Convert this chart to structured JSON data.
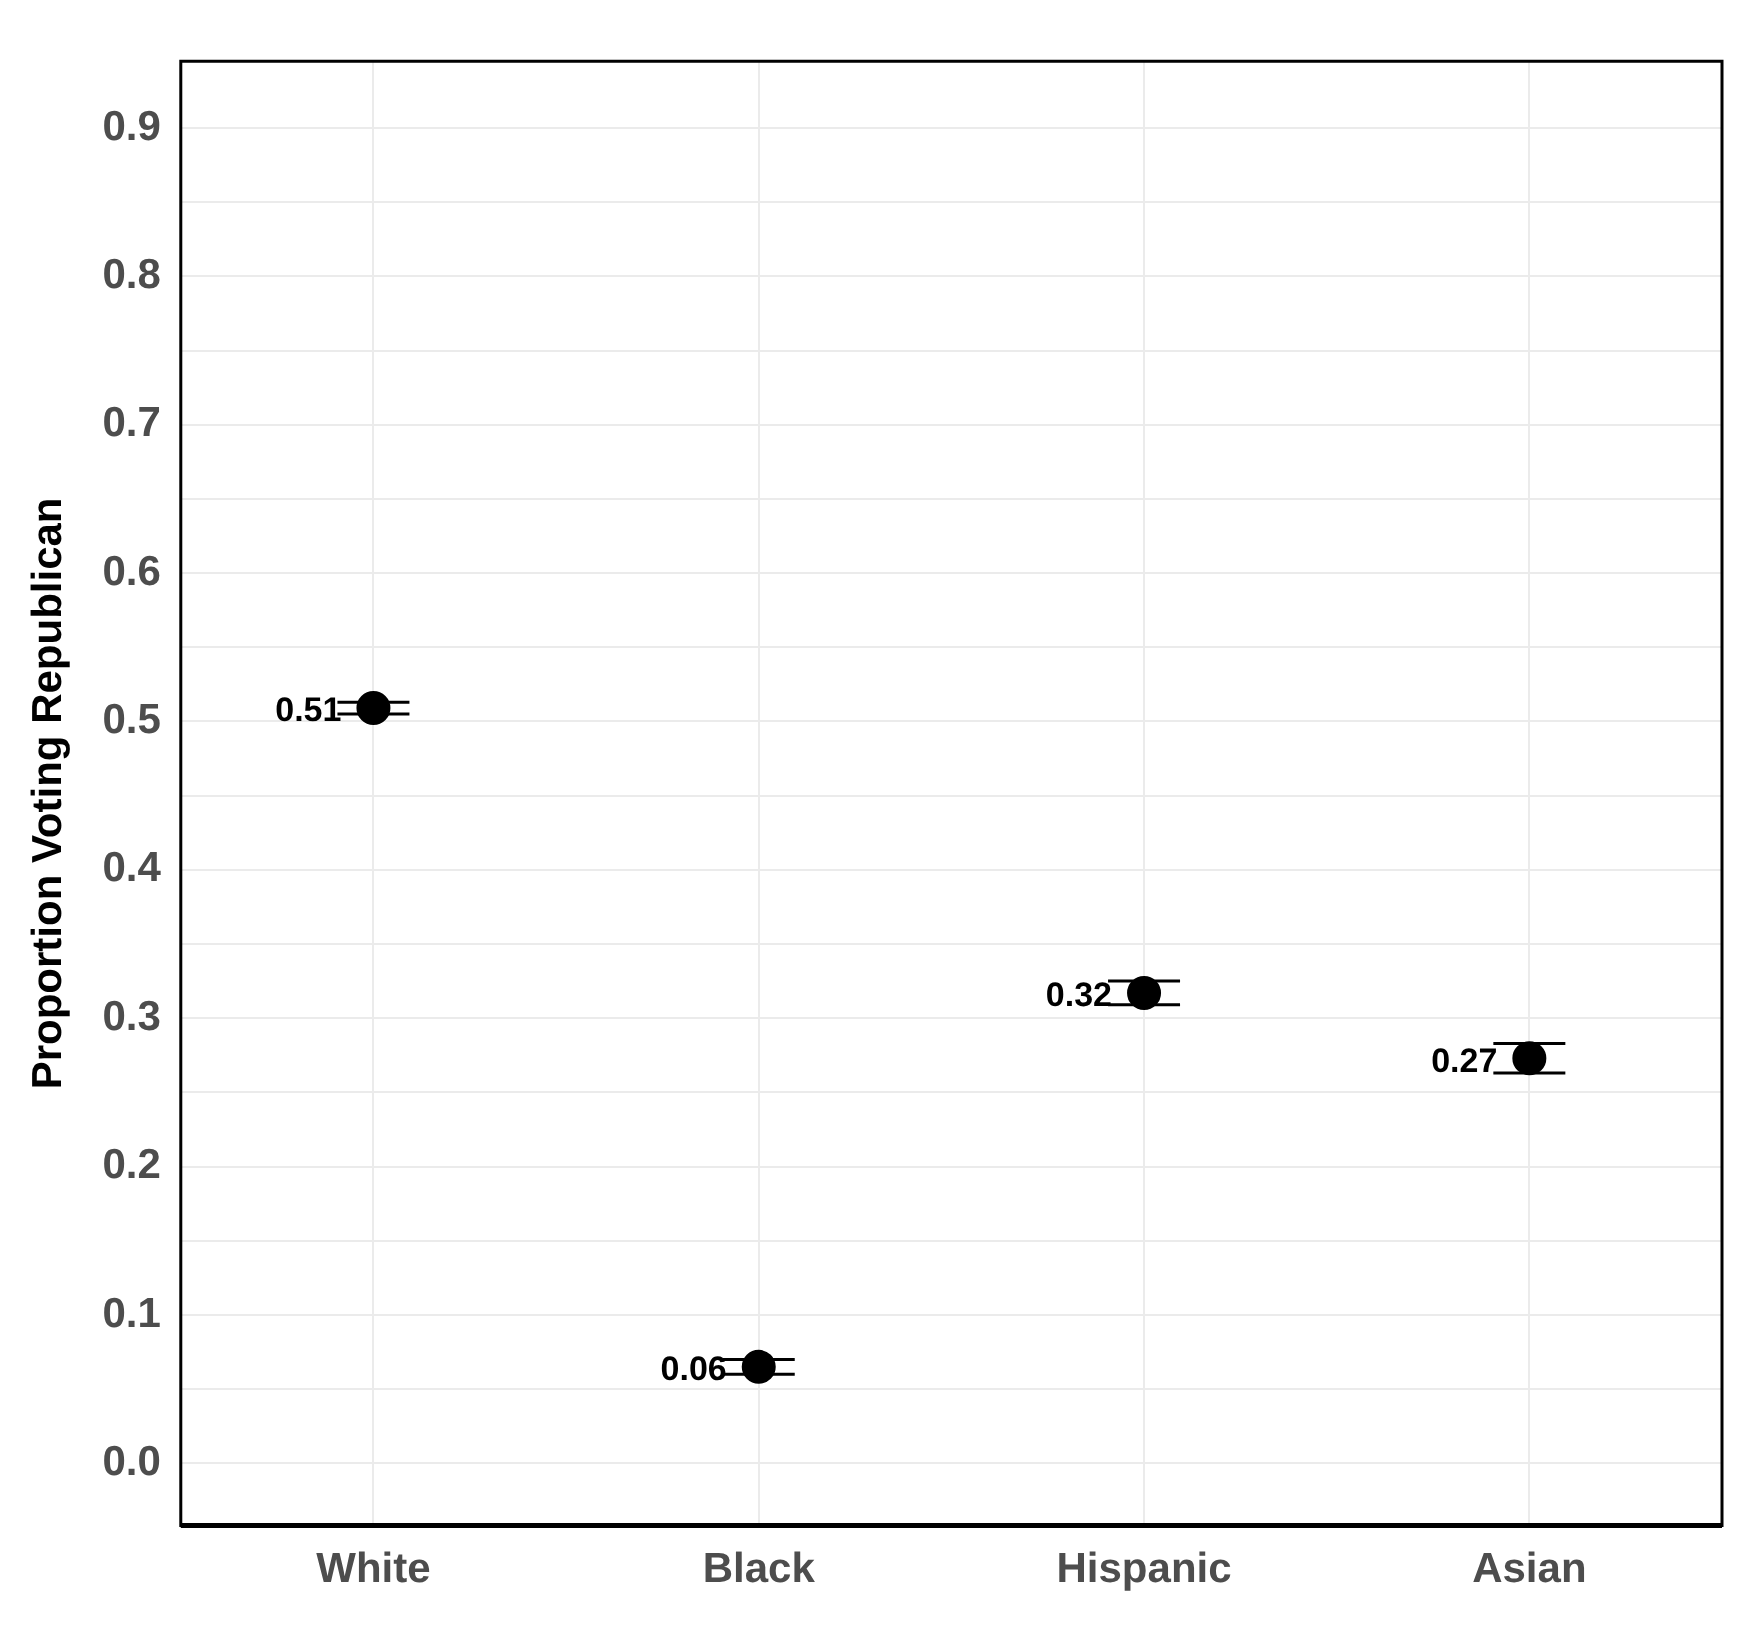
{
  "chart_data": {
    "type": "scatter",
    "ylabel": "Proportion Voting Republican",
    "categories": [
      "White",
      "Black",
      "Hispanic",
      "Asian"
    ],
    "values": [
      0.509,
      0.065,
      0.317,
      0.273
    ],
    "errors": [
      0.004,
      0.005,
      0.008,
      0.01
    ],
    "value_labels": [
      "0.51",
      "0.06",
      "0.32",
      "0.27"
    ],
    "color": "#000000",
    "marker": "circle",
    "ylim": [
      -0.042,
      0.945
    ],
    "yticks": [
      {
        "value": 0,
        "label": "0.0"
      },
      {
        "value": 0.05,
        "label": null
      },
      {
        "value": 0.1,
        "label": "0.1"
      },
      {
        "value": 0.15,
        "label": null
      },
      {
        "value": 0.2,
        "label": "0.2"
      },
      {
        "value": 0.25,
        "label": null
      },
      {
        "value": 0.3,
        "label": "0.3"
      },
      {
        "value": 0.35,
        "label": null
      },
      {
        "value": 0.4,
        "label": "0.4"
      },
      {
        "value": 0.45,
        "label": null
      },
      {
        "value": 0.5,
        "label": "0.5"
      },
      {
        "value": 0.55,
        "label": null
      },
      {
        "value": 0.6,
        "label": "0.6"
      },
      {
        "value": 0.65,
        "label": null
      },
      {
        "value": 0.7,
        "label": "0.7"
      },
      {
        "value": 0.75,
        "label": null
      },
      {
        "value": 0.8,
        "label": "0.8"
      },
      {
        "value": 0.85,
        "label": null
      },
      {
        "value": 0.9,
        "label": "0.9"
      }
    ],
    "grid": true
  }
}
